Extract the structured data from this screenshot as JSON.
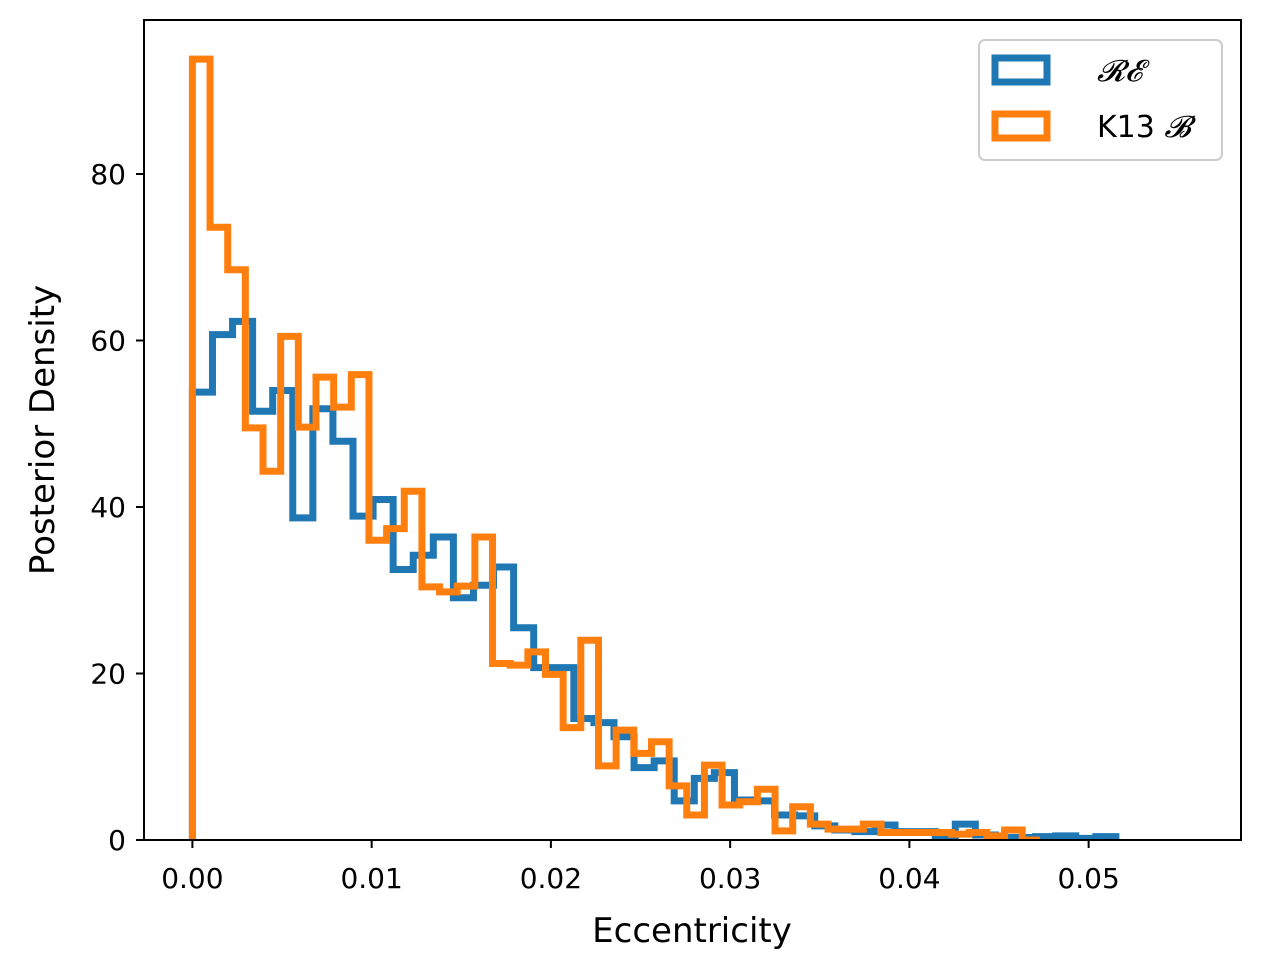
{
  "chart_data": {
    "type": "histogram-step",
    "xlabel": "Eccentricity",
    "ylabel": "Posterior Density",
    "xlim": [
      -0.0027,
      0.0585
    ],
    "ylim": [
      0,
      98.5
    ],
    "xticks": [
      0.0,
      0.01,
      0.02,
      0.03,
      0.04,
      0.05
    ],
    "xtick_labels": [
      "0.00",
      "0.01",
      "0.02",
      "0.03",
      "0.04",
      "0.05"
    ],
    "yticks": [
      0,
      20,
      40,
      60,
      80
    ],
    "ytick_labels": [
      "0",
      "20",
      "40",
      "60",
      "80"
    ],
    "legend_position": "upper right",
    "grid": false,
    "series": [
      {
        "name": "𝓡𝓔",
        "legend_prefix": "",
        "legend_math": "𝓡𝓔",
        "color": "#1f77b4",
        "bin_start": 0.0,
        "bin_width": 0.00112,
        "values": [
          53.8,
          60.7,
          62.3,
          51.5,
          54.0,
          38.7,
          51.8,
          47.9,
          38.9,
          40.9,
          32.5,
          34.2,
          36.4,
          29.1,
          30.6,
          32.8,
          25.5,
          20.7,
          20.7,
          14.6,
          14.1,
          12.4,
          8.7,
          9.5,
          4.7,
          7.4,
          8.1,
          4.8,
          4.7,
          3.0,
          2.9,
          1.7,
          1.2,
          1.0,
          1.8,
          1.0,
          1.0,
          0.4,
          1.9,
          0.6,
          0.3,
          0.3,
          0.4,
          0.5,
          0.2,
          0.4
        ],
        "value_x_is_bin_left_edge": true
      },
      {
        "name": "K13 𝓑",
        "legend_prefix": "K13 ",
        "legend_math": "𝓑",
        "color": "#ff7f0e",
        "bin_start": 0.0,
        "bin_width": 0.000985,
        "values": [
          93.8,
          73.6,
          68.5,
          49.5,
          44.3,
          60.5,
          49.6,
          55.6,
          52.0,
          55.9,
          36.0,
          37.4,
          41.9,
          30.4,
          29.8,
          30.5,
          36.4,
          21.2,
          21.0,
          22.6,
          19.9,
          13.5,
          24.0,
          8.9,
          13.2,
          10.4,
          11.8,
          6.5,
          3.0,
          9.0,
          4.2,
          4.6,
          6.1,
          1.1,
          4.0,
          1.9,
          1.3,
          1.3,
          1.9,
          0.9,
          0.9,
          0.9,
          0.9,
          0.7,
          0.9,
          0.5,
          1.2,
          0.0
        ]
      }
    ]
  }
}
